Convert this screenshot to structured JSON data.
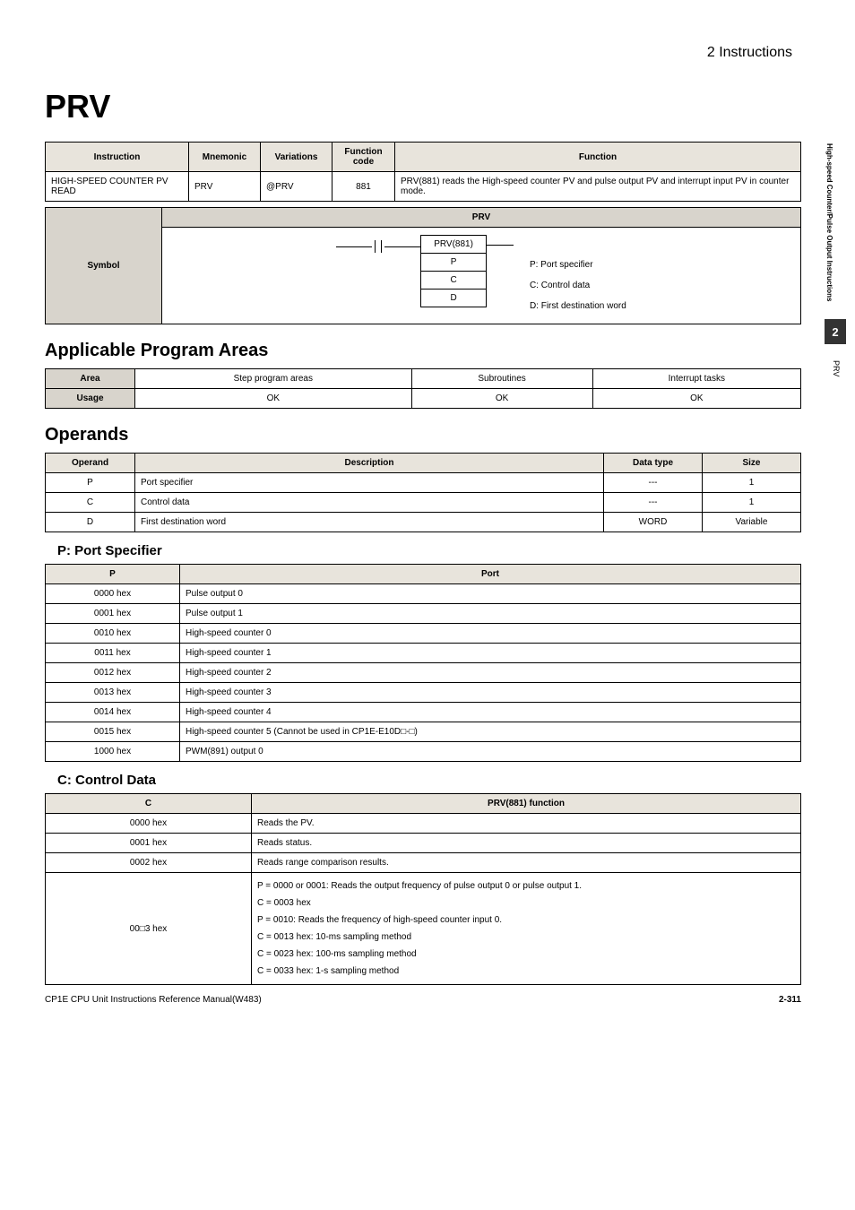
{
  "header": {
    "section_title": "2   Instructions"
  },
  "side": {
    "vtext": "High-speed Counter/Pulse\nOutput Instructions",
    "num": "2",
    "mnem": "PRV"
  },
  "title": "PRV",
  "instr_table": {
    "headers": [
      "Instruction",
      "Mnemonic",
      "Variations",
      "Function code",
      "Function"
    ],
    "row": {
      "instruction": "HIGH-SPEED COUNTER PV READ",
      "mnemonic": "PRV",
      "variations": "@PRV",
      "code": "881",
      "function": "PRV(881) reads the High-speed counter PV and pulse output PV and interrupt input PV in counter mode."
    }
  },
  "symbol": {
    "label": "Symbol",
    "header": "PRV",
    "cells": [
      "PRV(881)",
      "P",
      "C",
      "D"
    ],
    "descs": [
      "P: Port specifier",
      "C: Control data",
      "D: First destination word"
    ]
  },
  "areas": {
    "title": "Applicable Program Areas",
    "h": {
      "area": "Area",
      "c1": "Step program areas",
      "c2": "Subroutines",
      "c3": "Interrupt tasks"
    },
    "r": {
      "lbl": "Usage",
      "c1": "OK",
      "c2": "OK",
      "c3": "OK"
    }
  },
  "operands": {
    "title": "Operands",
    "h": [
      "Operand",
      "Description",
      "Data type",
      "Size"
    ],
    "rows": [
      [
        "P",
        "Port specifier",
        "---",
        "1"
      ],
      [
        "C",
        "Control data",
        "---",
        "1"
      ],
      [
        "D",
        "First destination word",
        "WORD",
        "Variable"
      ]
    ]
  },
  "port": {
    "title": "P: Port Specifier",
    "h": [
      "P",
      "Port"
    ],
    "rows": [
      [
        "0000 hex",
        "Pulse output 0"
      ],
      [
        "0001 hex",
        "Pulse output 1"
      ],
      [
        "0010 hex",
        "High-speed counter 0"
      ],
      [
        "0011 hex",
        "High-speed counter 1"
      ],
      [
        "0012 hex",
        "High-speed counter 2"
      ],
      [
        "0013 hex",
        "High-speed counter 3"
      ],
      [
        "0014 hex",
        "High-speed counter 4"
      ],
      [
        "0015 hex",
        "High-speed counter 5 (Cannot be used in CP1E-E10D□-□)"
      ],
      [
        "1000 hex",
        "PWM(891) output 0"
      ]
    ]
  },
  "ctrl": {
    "title": "C: Control Data",
    "h": [
      "C",
      "PRV(881) function"
    ],
    "rows": [
      [
        "0000 hex",
        "Reads the PV."
      ],
      [
        "0001 hex",
        "Reads status."
      ],
      [
        "0002 hex",
        "Reads range comparison results."
      ]
    ],
    "merged": {
      "c": "00□3 hex",
      "lines": [
        "P = 0000 or 0001: Reads the output frequency of pulse output 0 or pulse output 1.",
        "C = 0003 hex",
        "P = 0010: Reads the frequency of high-speed counter input 0.",
        "C = 0013 hex: 10-ms sampling method",
        "C = 0023 hex: 100-ms sampling method",
        "C = 0033 hex: 1-s sampling method"
      ]
    }
  },
  "footer": {
    "left": "CP1E CPU Unit Instructions Reference Manual(W483)",
    "right": "2-311"
  }
}
